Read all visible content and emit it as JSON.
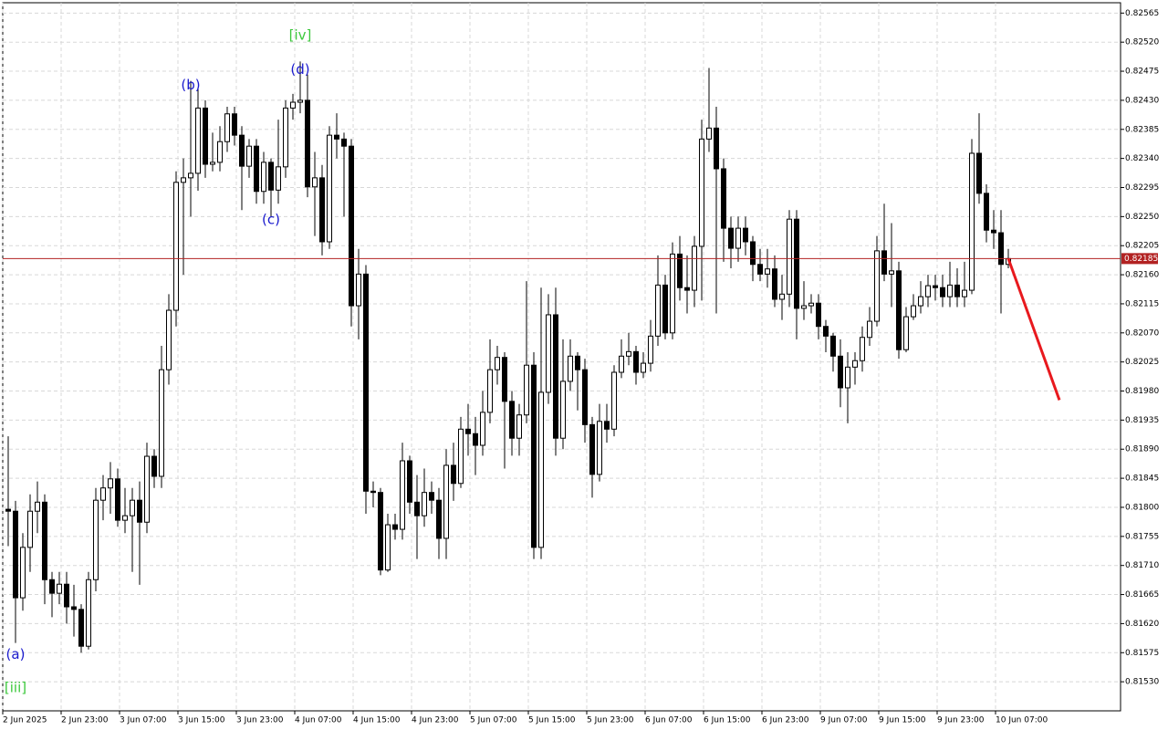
{
  "chart_data": {
    "type": "candlestick",
    "categories": [
      "2 Jun 2025",
      null,
      null,
      null,
      null,
      null,
      null,
      null,
      "2 Jun 23:00",
      null,
      null,
      null,
      null,
      null,
      null,
      null,
      "3 Jun 07:00",
      null,
      null,
      null,
      null,
      null,
      null,
      null,
      "3 Jun 15:00",
      null,
      null,
      null,
      null,
      null,
      null,
      null,
      "3 Jun 23:00",
      null,
      null,
      null,
      null,
      null,
      null,
      null,
      "4 Jun 07:00",
      null,
      null,
      null,
      null,
      null,
      null,
      null,
      "4 Jun 15:00",
      null,
      null,
      null,
      null,
      null,
      null,
      null,
      "4 Jun 23:00",
      null,
      null,
      null,
      null,
      null,
      null,
      null,
      "5 Jun 07:00",
      null,
      null,
      null,
      null,
      null,
      null,
      null,
      "5 Jun 15:00",
      null,
      null,
      null,
      null,
      null,
      null,
      null,
      "5 Jun 23:00",
      null,
      null,
      null,
      null,
      null,
      null,
      null,
      "6 Jun 07:00",
      null,
      null,
      null,
      null,
      null,
      null,
      null,
      "6 Jun 15:00",
      null,
      null,
      null,
      null,
      null,
      null,
      null,
      "6 Jun 23:00",
      null,
      null,
      null,
      null,
      null,
      null,
      null,
      "9 Jun 07:00",
      null,
      null,
      null,
      null,
      null,
      null,
      null,
      "9 Jun 15:00",
      null,
      null,
      null,
      null,
      null,
      null,
      null,
      "9 Jun 23:00",
      null,
      null,
      null,
      null,
      null,
      null,
      null,
      "10 Jun 07:00",
      null
    ],
    "open": [
      0.81797,
      0.81794,
      0.8166,
      0.81738,
      0.81794,
      0.81808,
      0.81688,
      0.81667,
      0.81681,
      0.81646,
      0.81642,
      0.81585,
      0.81688,
      0.81811,
      0.8183,
      0.81844,
      0.8178,
      0.81787,
      0.81811,
      0.81777,
      0.81879,
      0.81848,
      0.82013,
      0.82105,
      0.82303,
      0.8231,
      0.82317,
      0.82418,
      0.82331,
      0.82334,
      0.82366,
      0.82409,
      0.82376,
      0.82328,
      0.82359,
      0.82289,
      0.82334,
      0.82291,
      0.82327,
      0.82418,
      0.82427,
      0.8243,
      0.82296,
      0.8231,
      0.82211,
      0.82376,
      0.8237,
      0.82359,
      0.82112,
      0.82161,
      0.81825,
      0.81823,
      0.81703,
      0.81773,
      0.81766,
      0.81872,
      0.81808,
      0.81787,
      0.81823,
      0.81811,
      0.81752,
      0.81865,
      0.81837,
      0.81921,
      0.81914,
      0.81896,
      0.81947,
      0.82013,
      0.82032,
      0.81964,
      0.81907,
      0.81943,
      0.8202,
      0.81738,
      0.81978,
      0.82098,
      0.81907,
      0.81995,
      0.82034,
      0.82013,
      0.81928,
      0.81851,
      0.81933,
      0.81921,
      0.82009,
      0.82034,
      0.82041,
      0.82009,
      0.82023,
      0.82065,
      0.82144,
      0.8207,
      0.82192,
      0.8214,
      0.82136,
      0.82204,
      0.8237,
      0.82387,
      0.82324,
      0.82232,
      0.82201,
      0.82232,
      0.82211,
      0.82176,
      0.82161,
      0.82169,
      0.82122,
      0.8213,
      0.82246,
      0.82108,
      0.82112,
      0.82116,
      0.8208,
      0.82065,
      0.82034,
      0.81985,
      0.82017,
      0.82027,
      0.82063,
      0.82088,
      0.82197,
      0.82161,
      0.82166,
      0.82044,
      0.82095,
      0.82112,
      0.82126,
      0.82143,
      0.8214,
      0.82126,
      0.82144,
      0.82126,
      0.82136,
      0.82348,
      0.82286,
      0.82229,
      0.82225,
      0.82176
    ],
    "high": [
      0.8191,
      0.8181,
      0.8176,
      0.8182,
      0.8184,
      0.8182,
      0.817,
      0.817,
      0.817,
      0.8168,
      0.8165,
      0.817,
      0.8183,
      0.8185,
      0.8187,
      0.8186,
      0.8183,
      0.8183,
      0.8184,
      0.819,
      0.8189,
      0.8205,
      0.8213,
      0.8232,
      0.8234,
      0.8246,
      0.8245,
      0.8243,
      0.8238,
      0.8239,
      0.8242,
      0.8242,
      0.8239,
      0.8237,
      0.8237,
      0.8235,
      0.8234,
      0.824,
      0.8243,
      0.8244,
      0.8249,
      0.8247,
      0.8235,
      0.8233,
      0.8239,
      0.8241,
      0.8238,
      0.8237,
      0.822,
      0.82175,
      0.8184,
      0.8183,
      0.8179,
      0.8179,
      0.819,
      0.8188,
      0.8185,
      0.8186,
      0.8184,
      0.8183,
      0.8189,
      0.819,
      0.8194,
      0.8196,
      0.8194,
      0.8198,
      0.8206,
      0.8205,
      0.8204,
      0.8198,
      0.8196,
      0.8215,
      0.8204,
      0.8214,
      0.8213,
      0.8214,
      0.8206,
      0.8206,
      0.8204,
      0.8203,
      0.8194,
      0.8196,
      0.8196,
      0.8202,
      0.8206,
      0.8207,
      0.8205,
      0.8204,
      0.8209,
      0.8219,
      0.8216,
      0.8221,
      0.8222,
      0.8219,
      0.8222,
      0.824,
      0.8248,
      0.8242,
      0.8234,
      0.8225,
      0.8225,
      0.8225,
      0.8222,
      0.822,
      0.822,
      0.8219,
      0.8216,
      0.8226,
      0.8226,
      0.8215,
      0.8213,
      0.8213,
      0.8209,
      0.8207,
      0.8206,
      0.8204,
      0.8204,
      0.8208,
      0.8211,
      0.8222,
      0.8227,
      0.8224,
      0.8218,
      0.8211,
      0.8213,
      0.8215,
      0.8216,
      0.8216,
      0.8216,
      0.8218,
      0.8217,
      0.8218,
      0.8237,
      0.8241,
      0.823,
      0.8226,
      0.8226,
      0.822
    ],
    "low": [
      0.8174,
      0.8159,
      0.8164,
      0.817,
      0.8176,
      0.8165,
      0.8163,
      0.8165,
      0.8162,
      0.816,
      0.81575,
      0.8158,
      0.8167,
      0.8178,
      0.8179,
      0.8177,
      0.8176,
      0.817,
      0.8168,
      0.8176,
      0.8183,
      0.8183,
      0.8199,
      0.8208,
      0.8216,
      0.8225,
      0.8229,
      0.8231,
      0.8232,
      0.8232,
      0.8235,
      0.8236,
      0.8226,
      0.8231,
      0.8227,
      0.8227,
      0.8225,
      0.8227,
      0.8231,
      0.824,
      0.8241,
      0.8228,
      0.8222,
      0.8219,
      0.822,
      0.8234,
      0.8225,
      0.8208,
      0.8206,
      0.8179,
      0.818,
      0.81695,
      0.817,
      0.8175,
      0.8175,
      0.8179,
      0.8172,
      0.8177,
      0.8179,
      0.8172,
      0.8172,
      0.8181,
      0.8183,
      0.8188,
      0.8185,
      0.8188,
      0.8193,
      0.8199,
      0.8186,
      0.8188,
      0.8188,
      0.8193,
      0.8172,
      0.8172,
      0.8196,
      0.8188,
      0.8189,
      0.8198,
      0.8195,
      0.819,
      0.81815,
      0.8184,
      0.819,
      0.8191,
      0.82,
      0.8202,
      0.8199,
      0.82,
      0.8201,
      0.8205,
      0.8206,
      0.8206,
      0.8212,
      0.821,
      0.8211,
      0.8212,
      0.8235,
      0.821,
      0.8218,
      0.8217,
      0.8218,
      0.8219,
      0.8215,
      0.8215,
      0.8214,
      0.8211,
      0.8209,
      0.8211,
      0.8206,
      0.8209,
      0.821,
      0.8206,
      0.8204,
      0.8201,
      0.81955,
      0.8193,
      0.8199,
      0.8201,
      0.8205,
      0.8208,
      0.8215,
      0.8211,
      0.8203,
      0.8204,
      0.8209,
      0.821,
      0.8211,
      0.8212,
      0.8211,
      0.8211,
      0.8211,
      0.8211,
      0.8213,
      0.8227,
      0.8221,
      0.822,
      0.821,
      0.8217
    ],
    "close": [
      0.81794,
      0.8166,
      0.81738,
      0.81794,
      0.81808,
      0.81688,
      0.81667,
      0.81681,
      0.81646,
      0.81642,
      0.81585,
      0.81688,
      0.81811,
      0.8183,
      0.81844,
      0.8178,
      0.81787,
      0.81811,
      0.81777,
      0.81879,
      0.81848,
      0.82013,
      0.82105,
      0.82303,
      0.8231,
      0.82317,
      0.82418,
      0.82331,
      0.82334,
      0.82366,
      0.82409,
      0.82376,
      0.82328,
      0.82359,
      0.82289,
      0.82334,
      0.82291,
      0.82327,
      0.82418,
      0.82427,
      0.8243,
      0.82296,
      0.8231,
      0.82211,
      0.82376,
      0.8237,
      0.82359,
      0.82112,
      0.82161,
      0.81825,
      0.81823,
      0.81703,
      0.81773,
      0.81766,
      0.81872,
      0.81808,
      0.81787,
      0.81823,
      0.81811,
      0.81752,
      0.81865,
      0.81837,
      0.81921,
      0.81914,
      0.81896,
      0.81947,
      0.82013,
      0.82032,
      0.81964,
      0.81907,
      0.81943,
      0.8202,
      0.81738,
      0.81978,
      0.82098,
      0.81907,
      0.81995,
      0.82034,
      0.82013,
      0.81928,
      0.81851,
      0.81933,
      0.81921,
      0.82009,
      0.82034,
      0.82041,
      0.82009,
      0.82023,
      0.82065,
      0.82144,
      0.8207,
      0.82192,
      0.8214,
      0.82136,
      0.82204,
      0.8237,
      0.82387,
      0.82324,
      0.82232,
      0.82201,
      0.82232,
      0.82211,
      0.82176,
      0.82161,
      0.82169,
      0.82122,
      0.8213,
      0.82246,
      0.82108,
      0.82112,
      0.82116,
      0.8208,
      0.82065,
      0.82034,
      0.81985,
      0.82017,
      0.82027,
      0.82063,
      0.82088,
      0.82197,
      0.82161,
      0.82166,
      0.82044,
      0.82095,
      0.82112,
      0.82126,
      0.82143,
      0.8214,
      0.82126,
      0.82144,
      0.82126,
      0.82136,
      0.82348,
      0.82286,
      0.82229,
      0.82225,
      0.82176,
      0.82185
    ],
    "ylim": [
      0.81485,
      0.82581
    ],
    "yticks": [
      0.82565,
      {
        "value": 0.8252,
        "label": "0.82520"
      },
      0.82475,
      {
        "value": 0.8243,
        "label": "0.82430"
      },
      0.82385,
      {
        "value": 0.8234,
        "label": "0.82340"
      },
      0.82295,
      {
        "value": 0.8225,
        "label": "0.82250"
      },
      0.82205,
      {
        "value": 0.8216,
        "label": "0.82160"
      },
      0.82115,
      {
        "value": 0.8207,
        "label": "0.82070"
      },
      0.82025,
      {
        "value": 0.8198,
        "label": "0.81980"
      },
      0.81935,
      {
        "value": 0.8189,
        "label": "0.81890"
      },
      0.81845,
      {
        "value": 0.818,
        "label": "0.81800"
      },
      0.81755,
      {
        "value": 0.8171,
        "label": "0.81710"
      },
      0.81665,
      {
        "value": 0.8162,
        "label": "0.81620"
      },
      0.81575,
      {
        "value": 0.8153,
        "label": "0.81530"
      }
    ],
    "grid": true,
    "current_price": 0.82185,
    "current_price_color": "#b22222",
    "forecast": {
      "x": [
        137,
        144
      ],
      "values": [
        0.82185,
        0.81966
      ],
      "color": "#e8191e"
    },
    "annotations": [
      {
        "text": "[iii]",
        "x": 1,
        "y": 0.8152,
        "color": "#3cc83c"
      },
      {
        "text": "(a)",
        "x": 1,
        "y": 0.81572,
        "color": "#1a1acd"
      },
      {
        "text": "(b)",
        "x": 25,
        "y": 0.82453,
        "color": "#1a1acd"
      },
      {
        "text": "(c)",
        "x": 36,
        "y": 0.82245,
        "color": "#1a1acd"
      },
      {
        "text": "(d)",
        "x": 40,
        "y": 0.82477,
        "color": "#1a1acd"
      },
      {
        "text": "[iv]",
        "x": 40,
        "y": 0.8253,
        "color": "#3cc83c"
      }
    ]
  }
}
